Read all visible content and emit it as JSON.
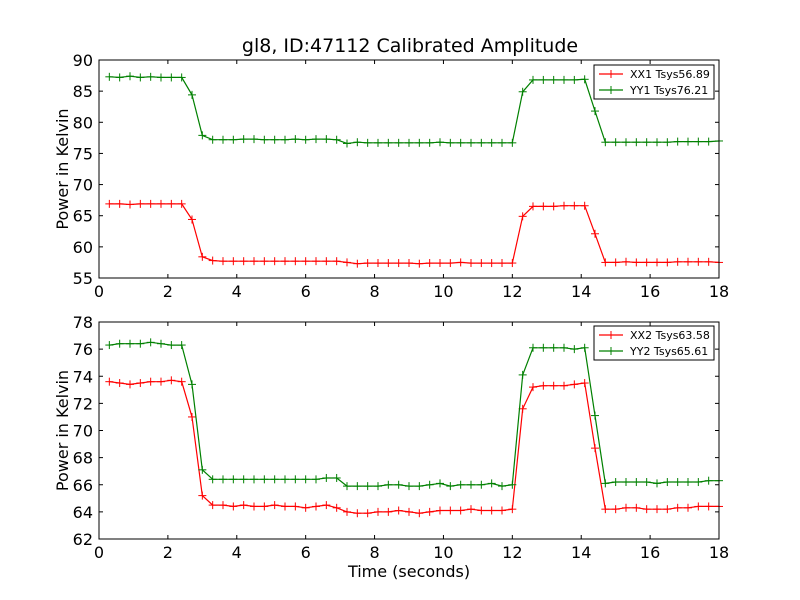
{
  "chart_data": [
    {
      "type": "line",
      "title": "gl8, ID:47112 Calibrated Amplitude",
      "xlabel": "",
      "ylabel": "Power in Kelvin",
      "xlim": [
        0,
        18
      ],
      "ylim": [
        55,
        90
      ],
      "xticks": [
        "0",
        "2",
        "4",
        "6",
        "8",
        "10",
        "12",
        "14",
        "16",
        "18"
      ],
      "yticks": [
        "55",
        "60",
        "65",
        "70",
        "75",
        "80",
        "85",
        "90"
      ],
      "legend_position": "top-right",
      "x": [
        0.3,
        0.6,
        0.9,
        1.2,
        1.5,
        1.8,
        2.1,
        2.4,
        2.7,
        3.0,
        3.3,
        3.6,
        3.9,
        4.2,
        4.5,
        4.8,
        5.1,
        5.4,
        5.7,
        6.0,
        6.3,
        6.6,
        6.9,
        7.2,
        7.5,
        7.8,
        8.1,
        8.4,
        8.7,
        9.0,
        9.3,
        9.6,
        9.9,
        10.2,
        10.5,
        10.8,
        11.1,
        11.4,
        11.7,
        12.0,
        12.3,
        12.6,
        12.9,
        13.2,
        13.5,
        13.8,
        14.1,
        14.4,
        14.7,
        15.0,
        15.3,
        15.6,
        15.9,
        16.2,
        16.5,
        16.8,
        17.1,
        17.4,
        17.7,
        18.0
      ],
      "series": [
        {
          "name": "XX1 Tsys56.89",
          "color": "#ff0000",
          "values": [
            66.9,
            66.9,
            66.8,
            66.9,
            66.9,
            66.9,
            66.9,
            66.9,
            64.4,
            58.4,
            57.8,
            57.7,
            57.7,
            57.7,
            57.7,
            57.7,
            57.7,
            57.7,
            57.7,
            57.7,
            57.7,
            57.7,
            57.7,
            57.5,
            57.3,
            57.4,
            57.4,
            57.4,
            57.4,
            57.4,
            57.3,
            57.4,
            57.4,
            57.4,
            57.5,
            57.4,
            57.4,
            57.4,
            57.4,
            57.4,
            64.9,
            66.5,
            66.5,
            66.5,
            66.6,
            66.6,
            66.6,
            62.1,
            57.5,
            57.5,
            57.6,
            57.5,
            57.5,
            57.5,
            57.5,
            57.6,
            57.6,
            57.6,
            57.6,
            57.5
          ]
        },
        {
          "name": "YY1 Tsys76.21",
          "color": "#008000",
          "values": [
            87.3,
            87.2,
            87.4,
            87.2,
            87.3,
            87.2,
            87.2,
            87.2,
            84.4,
            77.9,
            77.2,
            77.2,
            77.2,
            77.3,
            77.3,
            77.2,
            77.2,
            77.2,
            77.3,
            77.2,
            77.3,
            77.3,
            77.2,
            76.6,
            76.8,
            76.7,
            76.7,
            76.7,
            76.7,
            76.7,
            76.7,
            76.7,
            76.8,
            76.7,
            76.7,
            76.7,
            76.7,
            76.7,
            76.7,
            76.7,
            84.9,
            86.8,
            86.8,
            86.8,
            86.8,
            86.8,
            86.9,
            81.8,
            76.8,
            76.8,
            76.8,
            76.8,
            76.8,
            76.8,
            76.8,
            76.9,
            76.9,
            76.9,
            76.9,
            77.0
          ]
        }
      ]
    },
    {
      "type": "line",
      "title": "",
      "xlabel": "Time (seconds)",
      "ylabel": "Power in Kelvin",
      "xlim": [
        0,
        18
      ],
      "ylim": [
        62,
        78
      ],
      "xticks": [
        "0",
        "2",
        "4",
        "6",
        "8",
        "10",
        "12",
        "14",
        "16",
        "18"
      ],
      "yticks": [
        "62",
        "64",
        "66",
        "68",
        "70",
        "72",
        "74",
        "76",
        "78"
      ],
      "legend_position": "top-right",
      "x": [
        0.3,
        0.6,
        0.9,
        1.2,
        1.5,
        1.8,
        2.1,
        2.4,
        2.7,
        3.0,
        3.3,
        3.6,
        3.9,
        4.2,
        4.5,
        4.8,
        5.1,
        5.4,
        5.7,
        6.0,
        6.3,
        6.6,
        6.9,
        7.2,
        7.5,
        7.8,
        8.1,
        8.4,
        8.7,
        9.0,
        9.3,
        9.6,
        9.9,
        10.2,
        10.5,
        10.8,
        11.1,
        11.4,
        11.7,
        12.0,
        12.3,
        12.6,
        12.9,
        13.2,
        13.5,
        13.8,
        14.1,
        14.4,
        14.7,
        15.0,
        15.3,
        15.6,
        15.9,
        16.2,
        16.5,
        16.8,
        17.1,
        17.4,
        17.7,
        18.0
      ],
      "series": [
        {
          "name": "XX2 Tsys63.58",
          "color": "#ff0000",
          "values": [
            73.6,
            73.5,
            73.4,
            73.5,
            73.6,
            73.6,
            73.7,
            73.6,
            71.0,
            65.2,
            64.5,
            64.5,
            64.4,
            64.5,
            64.4,
            64.4,
            64.5,
            64.4,
            64.4,
            64.3,
            64.4,
            64.5,
            64.3,
            64.0,
            63.9,
            63.9,
            64.0,
            64.0,
            64.1,
            64.0,
            63.9,
            64.0,
            64.1,
            64.1,
            64.1,
            64.2,
            64.1,
            64.1,
            64.1,
            64.2,
            71.6,
            73.2,
            73.3,
            73.3,
            73.3,
            73.4,
            73.5,
            68.7,
            64.2,
            64.2,
            64.3,
            64.3,
            64.2,
            64.2,
            64.2,
            64.3,
            64.3,
            64.4,
            64.4,
            64.4
          ]
        },
        {
          "name": "YY2 Tsys65.61",
          "color": "#008000",
          "values": [
            76.3,
            76.4,
            76.4,
            76.4,
            76.5,
            76.4,
            76.3,
            76.3,
            73.4,
            67.1,
            66.4,
            66.4,
            66.4,
            66.4,
            66.4,
            66.4,
            66.4,
            66.4,
            66.4,
            66.4,
            66.4,
            66.5,
            66.5,
            65.9,
            65.9,
            65.9,
            65.9,
            66.0,
            66.0,
            65.9,
            65.9,
            66.0,
            66.1,
            65.9,
            66.0,
            66.0,
            66.0,
            66.1,
            65.9,
            66.0,
            74.1,
            76.1,
            76.1,
            76.1,
            76.1,
            76.0,
            76.1,
            71.1,
            66.1,
            66.2,
            66.2,
            66.2,
            66.2,
            66.1,
            66.2,
            66.2,
            66.2,
            66.2,
            66.3,
            66.3
          ]
        }
      ]
    }
  ]
}
